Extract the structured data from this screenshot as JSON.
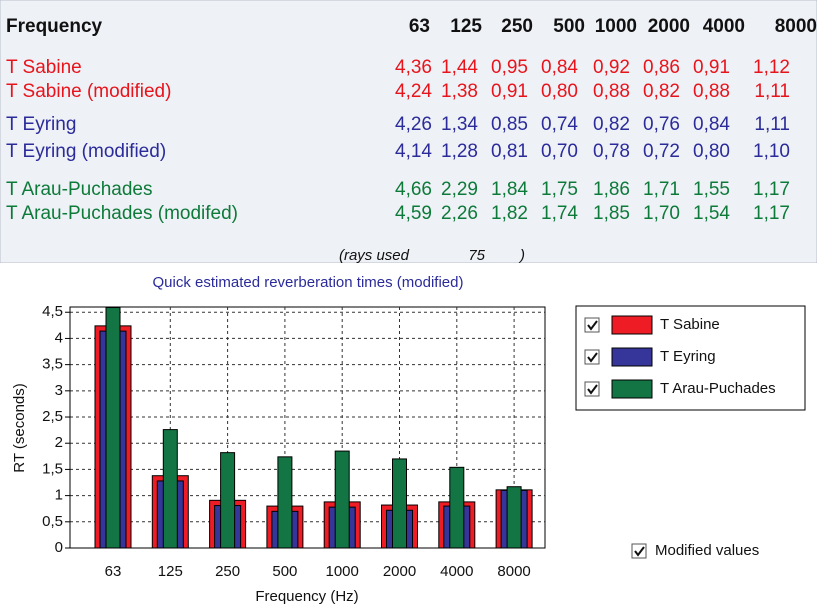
{
  "table": {
    "header": [
      "Frequency",
      "63",
      "125",
      "250",
      "500",
      "1000",
      "2000",
      "4000",
      "8000"
    ],
    "rows": [
      [
        "T Sabine",
        "4,36",
        "1,44",
        "0,95",
        "0,84",
        "0,92",
        "0,86",
        "0,91",
        "1,12"
      ],
      [
        "T Sabine (modified)",
        "4,24",
        "1,38",
        "0,91",
        "0,80",
        "0,88",
        "0,82",
        "0,88",
        "1,11"
      ],
      [
        "T Eyring",
        "4,26",
        "1,34",
        "0,85",
        "0,74",
        "0,82",
        "0,76",
        "0,84",
        "1,11"
      ],
      [
        "T Eyring (modified)",
        "4,14",
        "1,28",
        "0,81",
        "0,70",
        "0,78",
        "0,72",
        "0,80",
        "1,10"
      ],
      [
        "T Arau-Puchades",
        "4,66",
        "2,29",
        "1,84",
        "1,75",
        "1,86",
        "1,71",
        "1,55",
        "1,17"
      ],
      [
        "T Arau-Puchades (modifed)",
        "4,59",
        "2,26",
        "1,82",
        "1,74",
        "1,85",
        "1,70",
        "1,54",
        "1,17"
      ]
    ],
    "row_colors": [
      "#e8141c",
      "#e8141c",
      "#2b2b9a",
      "#2b2b9a",
      "#0e7a3a",
      "#0e7a3a"
    ],
    "rays_label": "(rays used",
    "rays": "75",
    "rays_close": ")"
  },
  "chart_data": {
    "type": "bar",
    "title": "Quick estimated reverberation times (modified)",
    "x_label": "Frequency (Hz)",
    "y_label": "RT (seconds)",
    "categories": [
      "63",
      "125",
      "250",
      "500",
      "1000",
      "2000",
      "4000",
      "8000"
    ],
    "series": [
      {
        "name": "T Sabine",
        "color": "#ee1c24",
        "checked": true,
        "values": [
          4.24,
          1.38,
          0.91,
          0.8,
          0.88,
          0.82,
          0.88,
          1.11
        ]
      },
      {
        "name": "T Eyring",
        "color": "#35359a",
        "checked": true,
        "values": [
          4.14,
          1.28,
          0.81,
          0.7,
          0.78,
          0.72,
          0.8,
          1.1
        ]
      },
      {
        "name": "T Arau-Puchades",
        "color": "#137544",
        "checked": true,
        "values": [
          4.59,
          2.26,
          1.82,
          1.74,
          1.85,
          1.7,
          1.54,
          1.17
        ]
      }
    ],
    "ylim": [
      0,
      4.6
    ],
    "yticks": [
      0,
      {
        "value": 0.5,
        "label": "0,5"
      },
      1,
      {
        "value": 1.5,
        "label": "1,5"
      },
      2,
      {
        "value": 2.5,
        "label": "2,5"
      },
      3,
      {
        "value": 3.5,
        "label": "3,5"
      },
      4,
      {
        "value": 4.5,
        "label": "4,5"
      }
    ],
    "grid": true
  },
  "modified_checkbox": {
    "label": "Modified values",
    "checked": true
  }
}
